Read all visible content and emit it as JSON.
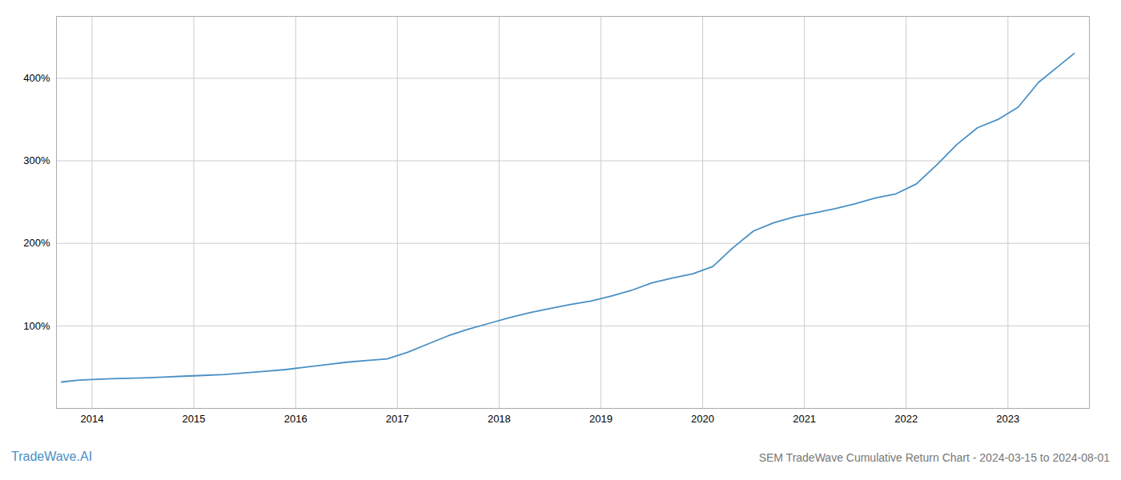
{
  "chart_data": {
    "type": "line",
    "title": "SEM TradeWave Cumulative Return Chart - 2024-03-15 to 2024-08-01",
    "annotations": [
      {
        "text": "TradeWave.AI",
        "color": "#4a90c4"
      }
    ],
    "color": "#4a90c4",
    "x": [
      2013.7,
      2013.85,
      2014.0,
      2014.2,
      2014.5,
      2014.7,
      2014.9,
      2015.1,
      2015.3,
      2015.5,
      2015.7,
      2015.9,
      2016.1,
      2016.3,
      2016.5,
      2016.7,
      2016.9,
      2017.1,
      2017.3,
      2017.5,
      2017.7,
      2017.9,
      2018.1,
      2018.3,
      2018.5,
      2018.7,
      2018.9,
      2019.1,
      2019.3,
      2019.5,
      2019.7,
      2019.9,
      2020.1,
      2020.3,
      2020.5,
      2020.7,
      2020.9,
      2021.1,
      2021.3,
      2021.5,
      2021.7,
      2021.9,
      2022.1,
      2022.3,
      2022.5,
      2022.7,
      2022.9,
      2023.1,
      2023.3,
      2023.5,
      2023.65
    ],
    "values": [
      32,
      34,
      35,
      36,
      37,
      38,
      39,
      40,
      41,
      43,
      45,
      47,
      50,
      53,
      56,
      58,
      60,
      68,
      78,
      88,
      96,
      103,
      110,
      116,
      121,
      126,
      130,
      136,
      143,
      152,
      158,
      163,
      172,
      195,
      215,
      225,
      232,
      237,
      242,
      248,
      255,
      260,
      272,
      295,
      320,
      340,
      350,
      365,
      395,
      415,
      430
    ],
    "xlim": [
      2013.65,
      2023.8
    ],
    "xticks": [
      2014,
      2015,
      2016,
      2017,
      2018,
      2019,
      2020,
      2021,
      2022,
      2023
    ],
    "ylim": [
      0,
      475
    ],
    "yticks": [
      {
        "value": 100,
        "label": "100%"
      },
      {
        "value": 200,
        "label": "200%"
      },
      {
        "value": 300,
        "label": "300%"
      },
      {
        "value": 400,
        "label": "400%"
      }
    ],
    "grid": true
  }
}
